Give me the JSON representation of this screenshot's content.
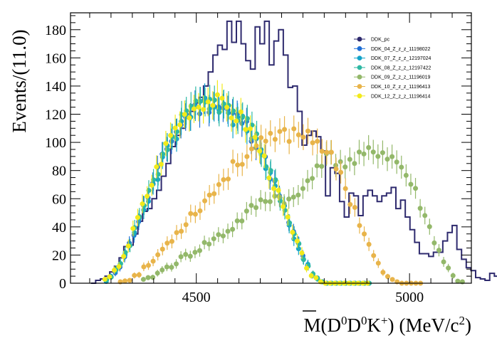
{
  "colors": {
    "frame": "#000000",
    "legend_text": "#000000"
  },
  "chart_data": {
    "type": "histogram-with-points",
    "xlabel": "M(D̄⁰D⁰K⁺) (MeV/c²)",
    "xlabel_parts": {
      "m": "M(",
      "dbar": "D",
      "dbar_sup": "0",
      "d": "D",
      "d_sup": "0",
      "k": "K",
      "k_sup": "+",
      "close": ")",
      "unit": "(MeV/c",
      "unit_sup": "2",
      "unit_close": ")"
    },
    "ylabel": "Events/(11.0)",
    "xlim": [
      4205,
      5145
    ],
    "ylim": [
      0,
      192
    ],
    "x_ticks": [
      4500,
      5000
    ],
    "y_ticks": [
      0,
      20,
      40,
      60,
      80,
      100,
      120,
      140,
      160,
      180
    ],
    "bin_width": 11,
    "legend_position": "top-right",
    "histogram": {
      "name": "DDK_pc",
      "color": "#2e2a6e",
      "x_start": 4253,
      "counts": [
        0,
        2,
        3,
        5,
        8,
        12,
        18,
        26,
        27,
        35,
        44,
        51,
        53,
        60,
        66,
        76,
        85,
        97,
        105,
        110,
        120,
        122,
        128,
        132,
        140,
        150,
        162,
        169,
        166,
        186,
        171,
        186,
        170,
        158,
        152,
        182,
        170,
        186,
        155,
        172,
        180,
        162,
        139,
        140,
        122,
        98,
        105,
        108,
        104,
        94,
        62,
        82,
        78,
        58,
        47,
        64,
        62,
        48,
        62,
        66,
        62,
        58,
        62,
        64,
        68,
        53,
        59,
        47,
        38,
        29,
        21,
        21,
        19,
        22,
        22,
        30,
        36,
        41,
        24,
        17,
        11,
        9,
        4,
        3,
        2,
        7,
        5,
        3,
        2,
        1,
        3,
        6,
        4,
        3,
        2
      ]
    },
    "series": [
      {
        "name": "DDK_04_Z_z_z_11198022",
        "color": "#1f6fd6",
        "group": "A",
        "scale": 1.0,
        "x_shift": 0,
        "seed": 11,
        "x": [
          4288,
          4299,
          4310,
          4321,
          4332,
          4343,
          4354,
          4365,
          4376,
          4387,
          4398,
          4409,
          4420,
          4431,
          4442,
          4453,
          4464,
          4475,
          4486,
          4497,
          4508,
          4519,
          4530,
          4541,
          4552,
          4563,
          4574,
          4585,
          4596,
          4607,
          4618,
          4629,
          4640,
          4651,
          4662,
          4673,
          4684,
          4695,
          4706,
          4717,
          4728,
          4739,
          4750,
          4761,
          4772,
          4783,
          4794,
          4805,
          4816,
          4827,
          4838,
          4849,
          4860,
          4871,
          4882,
          4893,
          4904
        ],
        "y": [
          2,
          4,
          8,
          13,
          20,
          27,
          36,
          45,
          53,
          62,
          70,
          79,
          87,
          95,
          103,
          108,
          113,
          117,
          121,
          123,
          125,
          127,
          127,
          128,
          126,
          124,
          122,
          119,
          117,
          115,
          111,
          106,
          101,
          94,
          86,
          78,
          70,
          61,
          52,
          44,
          35,
          27,
          19,
          12,
          6,
          3,
          1,
          0,
          0,
          0,
          0,
          0,
          0,
          0,
          0,
          0,
          0
        ]
      },
      {
        "name": "DDK_07_Z_z_z_12197024",
        "color": "#12a3c9",
        "group": "A",
        "scale": 0.99,
        "x_shift": 0,
        "seed": 23,
        "x": [
          4288,
          4299,
          4310,
          4321,
          4332,
          4343,
          4354,
          4365,
          4376,
          4387,
          4398,
          4409,
          4420,
          4431,
          4442,
          4453,
          4464,
          4475,
          4486,
          4497,
          4508,
          4519,
          4530,
          4541,
          4552,
          4563,
          4574,
          4585,
          4596,
          4607,
          4618,
          4629,
          4640,
          4651,
          4662,
          4673,
          4684,
          4695,
          4706,
          4717,
          4728,
          4739,
          4750,
          4761,
          4772,
          4783,
          4794,
          4805,
          4816,
          4827,
          4838,
          4849,
          4860,
          4871,
          4882,
          4893,
          4904
        ],
        "y": [
          2,
          4,
          8,
          13,
          20,
          27,
          36,
          45,
          53,
          62,
          70,
          79,
          87,
          95,
          103,
          108,
          113,
          117,
          121,
          123,
          125,
          127,
          127,
          128,
          126,
          124,
          122,
          119,
          117,
          115,
          111,
          106,
          101,
          94,
          86,
          78,
          70,
          61,
          52,
          44,
          35,
          27,
          19,
          12,
          6,
          3,
          1,
          0,
          0,
          0,
          0,
          0,
          0,
          0,
          0,
          0,
          0
        ]
      },
      {
        "name": "DDK_08_Z_z_z_12197422",
        "color": "#2eb8a3",
        "group": "A",
        "scale": 1.01,
        "x_shift": 0,
        "seed": 37,
        "x": [
          4288,
          4299,
          4310,
          4321,
          4332,
          4343,
          4354,
          4365,
          4376,
          4387,
          4398,
          4409,
          4420,
          4431,
          4442,
          4453,
          4464,
          4475,
          4486,
          4497,
          4508,
          4519,
          4530,
          4541,
          4552,
          4563,
          4574,
          4585,
          4596,
          4607,
          4618,
          4629,
          4640,
          4651,
          4662,
          4673,
          4684,
          4695,
          4706,
          4717,
          4728,
          4739,
          4750,
          4761,
          4772,
          4783,
          4794,
          4805,
          4816,
          4827,
          4838,
          4849,
          4860,
          4871,
          4882,
          4893,
          4904
        ],
        "y": [
          2,
          4,
          8,
          13,
          20,
          27,
          36,
          45,
          53,
          62,
          70,
          79,
          87,
          95,
          103,
          108,
          113,
          117,
          121,
          123,
          125,
          127,
          127,
          128,
          126,
          124,
          122,
          119,
          117,
          115,
          111,
          106,
          101,
          94,
          86,
          78,
          70,
          61,
          52,
          44,
          35,
          27,
          19,
          12,
          6,
          3,
          1,
          0,
          0,
          0,
          0,
          0,
          0,
          0,
          0,
          0,
          0
        ]
      },
      {
        "name": "DDK_09_Z_z_z_11196019",
        "color": "#93b86a",
        "group": "C",
        "scale": 1.0,
        "x_shift": 0,
        "seed": 41,
        "x": [
          4376,
          4387,
          4398,
          4409,
          4420,
          4431,
          4442,
          4453,
          4464,
          4475,
          4486,
          4497,
          4508,
          4519,
          4530,
          4541,
          4552,
          4563,
          4574,
          4585,
          4596,
          4607,
          4618,
          4629,
          4640,
          4651,
          4662,
          4673,
          4684,
          4695,
          4706,
          4717,
          4728,
          4739,
          4750,
          4761,
          4772,
          4783,
          4794,
          4805,
          4816,
          4827,
          4838,
          4849,
          4860,
          4871,
          4882,
          4893,
          4904,
          4915,
          4926,
          4937,
          4948,
          4959,
          4970,
          4981,
          4992,
          5003,
          5014,
          5025,
          5036,
          5047,
          5058,
          5069,
          5080,
          5091,
          5102,
          5113,
          5124
        ],
        "y": [
          2,
          3,
          5,
          7,
          9,
          11,
          13,
          15,
          17,
          19,
          21,
          23,
          25,
          27,
          29,
          31,
          33,
          35,
          37,
          40,
          43,
          46,
          49,
          52,
          55,
          57,
          59,
          61,
          61,
          61,
          60,
          58,
          59,
          62,
          67,
          73,
          79,
          84,
          87,
          88,
          89,
          88,
          86,
          85,
          85,
          86,
          88,
          90,
          92,
          93,
          94,
          93,
          91,
          89,
          86,
          82,
          77,
          71,
          64,
          56,
          47,
          39,
          31,
          23,
          16,
          10,
          5,
          2,
          1
        ]
      },
      {
        "name": "DDK_10_Z_z_z_11196413",
        "color": "#e8b44a",
        "group": "B",
        "scale": 1.0,
        "x_shift": 0,
        "seed": 53,
        "x": [
          4321,
          4332,
          4343,
          4354,
          4365,
          4376,
          4387,
          4398,
          4409,
          4420,
          4431,
          4442,
          4453,
          4464,
          4475,
          4486,
          4497,
          4508,
          4519,
          4530,
          4541,
          4552,
          4563,
          4574,
          4585,
          4596,
          4607,
          4618,
          4629,
          4640,
          4651,
          4662,
          4673,
          4684,
          4695,
          4706,
          4717,
          4728,
          4739,
          4750,
          4761,
          4772,
          4783,
          4794,
          4805,
          4816,
          4827,
          4838,
          4849,
          4860,
          4871,
          4882,
          4893,
          4904,
          4915,
          4926,
          4937,
          4948,
          4959,
          4970,
          4981,
          4992,
          5003,
          5014,
          5025
        ],
        "y": [
          1,
          2,
          3,
          5,
          7,
          10,
          13,
          16,
          20,
          24,
          28,
          32,
          36,
          40,
          44,
          48,
          51,
          55,
          58,
          62,
          66,
          70,
          74,
          78,
          82,
          86,
          89,
          92,
          95,
          97,
          98,
          100,
          101,
          103,
          104,
          106,
          106,
          107,
          107,
          107,
          106,
          104,
          102,
          98,
          93,
          88,
          82,
          75,
          68,
          60,
          52,
          44,
          36,
          28,
          20,
          13,
          8,
          4,
          2,
          1,
          0,
          0,
          0,
          0,
          0
        ]
      },
      {
        "name": "DDK_12_Z_z_z_11196414",
        "color": "#f2ea1b",
        "group": "A",
        "scale": 1.02,
        "x_shift": -4,
        "seed": 67,
        "x": [
          4288,
          4299,
          4310,
          4321,
          4332,
          4343,
          4354,
          4365,
          4376,
          4387,
          4398,
          4409,
          4420,
          4431,
          4442,
          4453,
          4464,
          4475,
          4486,
          4497,
          4508,
          4519,
          4530,
          4541,
          4552,
          4563,
          4574,
          4585,
          4596,
          4607,
          4618,
          4629,
          4640,
          4651,
          4662,
          4673,
          4684,
          4695,
          4706,
          4717,
          4728,
          4739,
          4750,
          4761,
          4772,
          4783,
          4794,
          4805,
          4816,
          4827,
          4838,
          4849,
          4860,
          4871,
          4882,
          4893,
          4904
        ],
        "y": [
          2,
          4,
          8,
          13,
          20,
          27,
          36,
          45,
          53,
          62,
          70,
          79,
          87,
          95,
          103,
          108,
          113,
          117,
          121,
          123,
          125,
          127,
          127,
          128,
          126,
          124,
          122,
          119,
          117,
          115,
          111,
          106,
          101,
          94,
          86,
          78,
          70,
          61,
          52,
          44,
          35,
          27,
          19,
          12,
          6,
          3,
          1,
          0,
          0,
          0,
          0,
          0,
          0,
          0,
          0,
          0,
          0
        ]
      }
    ]
  }
}
